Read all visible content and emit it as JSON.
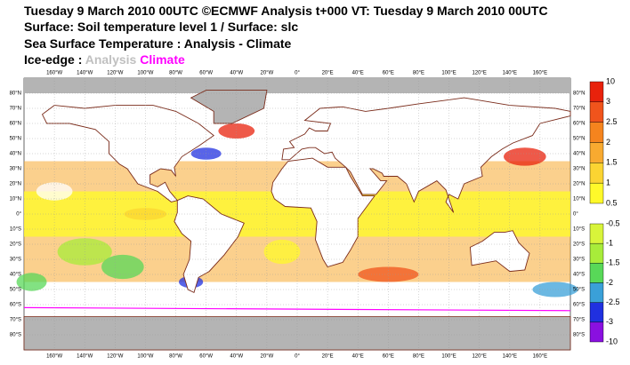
{
  "header": {
    "line1": "Tuesday 9 March 2010 00UTC ©ECMWF Analysis t+000 VT: Tuesday 9 March 2010 00UTC",
    "line2": "Surface: Soil temperature level 1 / Surface: slc",
    "line3": "Sea Surface Temperature : Analysis - Climate",
    "ice_edge_label": "Ice-edge : ",
    "ice_edge_analysis": "Analysis",
    "ice_edge_climate": "Climate"
  },
  "map": {
    "lat_labels": [
      "80°N",
      "70°N",
      "60°N",
      "50°N",
      "40°N",
      "30°N",
      "20°N",
      "10°N",
      "0°",
      "10°S",
      "20°S",
      "30°S",
      "40°S",
      "50°S",
      "60°S",
      "70°S",
      "80°S"
    ],
    "lon_labels": [
      "160°W",
      "140°W",
      "120°W",
      "100°W",
      "80°W",
      "60°W",
      "40°W",
      "20°W",
      "0°",
      "20°E",
      "40°E",
      "60°E",
      "80°E",
      "100°E",
      "120°E",
      "140°E",
      "160°E"
    ]
  },
  "colorbar": {
    "positive_levels": [
      10,
      3,
      2.5,
      2,
      1.5,
      1,
      0.5
    ],
    "positive_colors": [
      "#e8220c",
      "#f0541c",
      "#f5841e",
      "#f8aa30",
      "#fbd432",
      "#fff92a"
    ],
    "negative_levels": [
      -0.5,
      -1,
      -1.5,
      -2,
      -2.5,
      -3,
      -10
    ],
    "negative_colors": [
      "#d8f43a",
      "#a8ec3a",
      "#58d858",
      "#3aa0d8",
      "#2030e0",
      "#8a10e0"
    ]
  }
}
